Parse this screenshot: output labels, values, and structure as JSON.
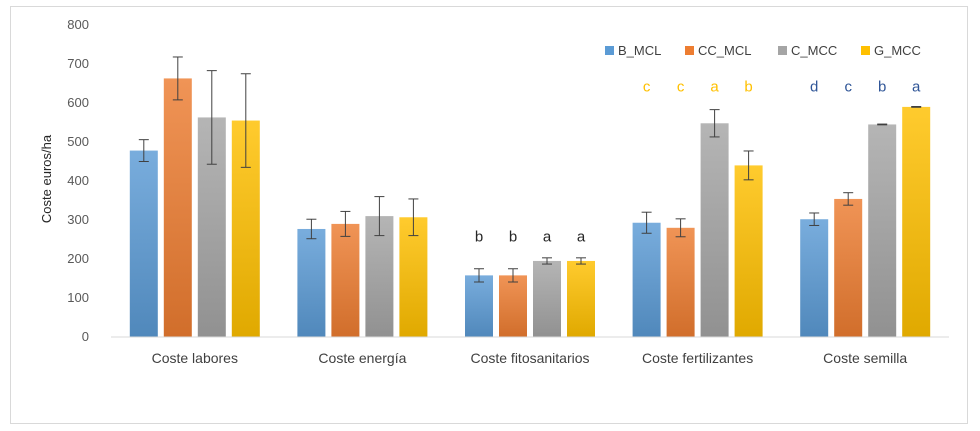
{
  "chart_data": {
    "type": "bar",
    "title": "",
    "xlabel": "",
    "ylabel": "Coste euros/ha",
    "ylim": [
      0,
      800
    ],
    "yticks": [
      "0",
      "100",
      "200",
      "300",
      "400",
      "500",
      "600",
      "700",
      "800"
    ],
    "grid": false,
    "legend_position": "top-right",
    "categories": [
      "Coste labores",
      "Coste energía",
      "Coste fitosanitarios",
      "Coste fertilizantes",
      "Coste semilla"
    ],
    "series": [
      {
        "name": "B_MCL",
        "color": "#5b9bd5",
        "values": [
          478,
          277,
          158,
          293,
          302
        ],
        "errors": [
          28,
          25,
          17,
          27,
          16
        ]
      },
      {
        "name": "CC_MCL",
        "color": "#ed7d31",
        "values": [
          663,
          290,
          158,
          280,
          354
        ],
        "errors": [
          55,
          32,
          17,
          23,
          16
        ]
      },
      {
        "name": "C_MCC",
        "color": "#a5a5a5",
        "values": [
          563,
          310,
          195,
          548,
          545
        ],
        "errors": [
          120,
          50,
          8,
          35,
          1
        ]
      },
      {
        "name": "G_MCC",
        "color": "#ffc000",
        "values": [
          555,
          307,
          195,
          440,
          590
        ],
        "errors": [
          120,
          47,
          8,
          37,
          1
        ]
      }
    ],
    "significance": [
      {
        "category_index": 2,
        "color": "#262626",
        "letters": [
          "b",
          "b",
          "a",
          "a"
        ]
      },
      {
        "category_index": 3,
        "color": "#ffc000",
        "letters": [
          "c",
          "c",
          "a",
          "b"
        ]
      },
      {
        "category_index": 4,
        "color": "#2f5597",
        "letters": [
          "d",
          "c",
          "b",
          "a"
        ]
      }
    ]
  }
}
